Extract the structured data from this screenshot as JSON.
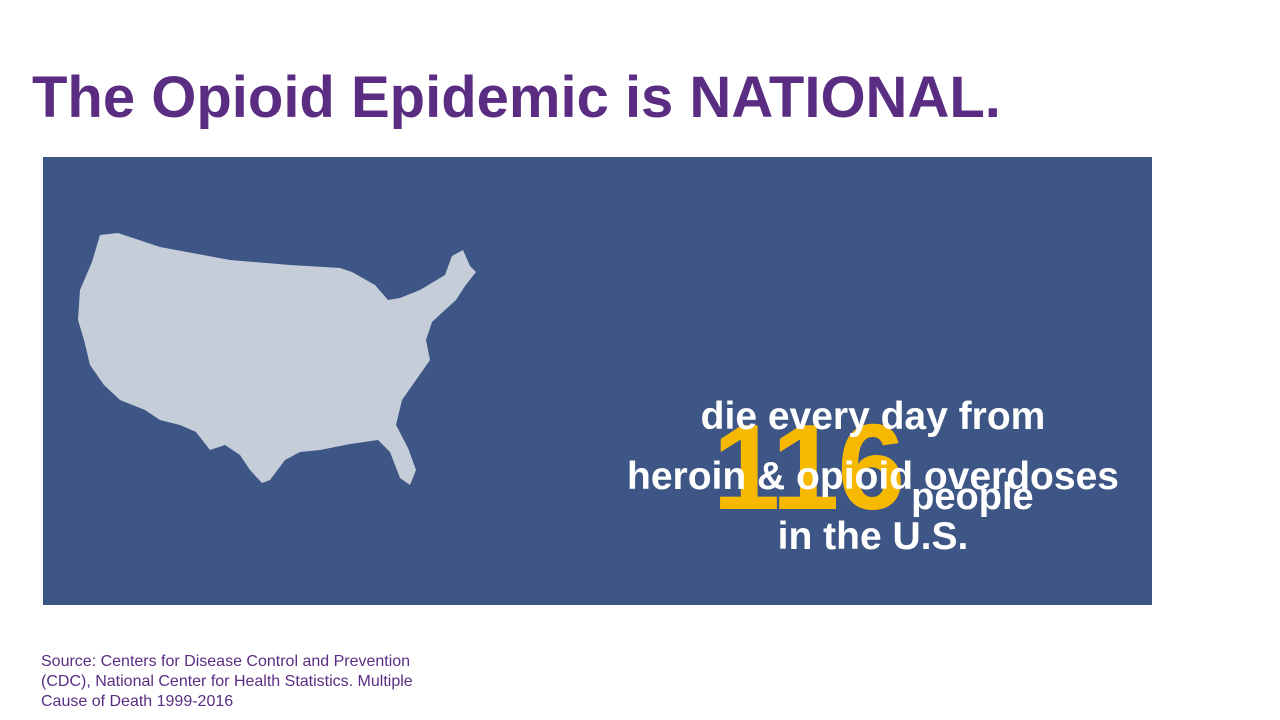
{
  "title": "The Opioid Epidemic is NATIONAL.",
  "stat": {
    "number": "116",
    "unit": "people",
    "lines": [
      "die every day from",
      "heroin & opioid overdoses",
      "in the U.S."
    ]
  },
  "source": {
    "lines": [
      "Source: Centers for Disease Control and Prevention",
      "(CDC), National Center for Health Statistics. Multiple",
      "Cause of Death 1999-2016"
    ]
  }
}
